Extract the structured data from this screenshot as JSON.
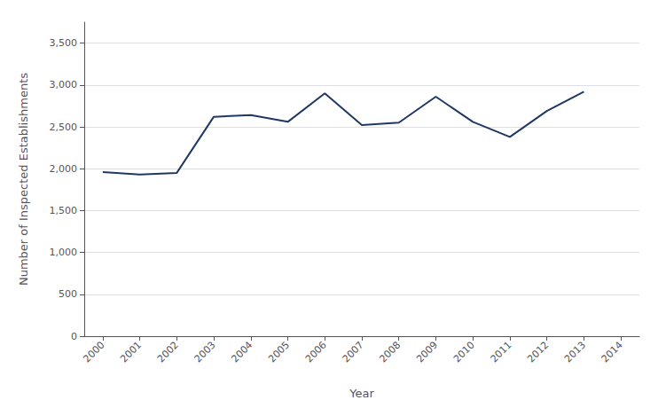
{
  "chart_data": {
    "type": "line",
    "x": [
      2000,
      2001,
      2002,
      2003,
      2004,
      2005,
      2006,
      2007,
      2008,
      2009,
      2010,
      2011,
      2012,
      2013
    ],
    "values": [
      1960,
      1930,
      1950,
      2620,
      2640,
      2560,
      2900,
      2520,
      2550,
      2860,
      2560,
      2380,
      2690,
      2920
    ],
    "color": "#1F3864",
    "xlabel": "Year",
    "ylabel": "Number of Inspected Establishments",
    "xlim": [
      1999.5,
      2014.5
    ],
    "ylim": [
      0,
      3750
    ],
    "xticks": [
      2000,
      2001,
      2002,
      2003,
      2004,
      2005,
      2006,
      2007,
      2008,
      2009,
      2010,
      2011,
      2012,
      2013,
      2014
    ],
    "yticks": [
      0,
      500,
      {
        "value": 1000,
        "label": "1,000"
      },
      {
        "value": 1500,
        "label": "1,500"
      },
      {
        "value": 2000,
        "label": "2,000"
      },
      {
        "value": 2500,
        "label": "2,500"
      },
      {
        "value": 3000,
        "label": "3,000"
      },
      {
        "value": 3500,
        "label": "3,500"
      }
    ],
    "grid": true
  }
}
